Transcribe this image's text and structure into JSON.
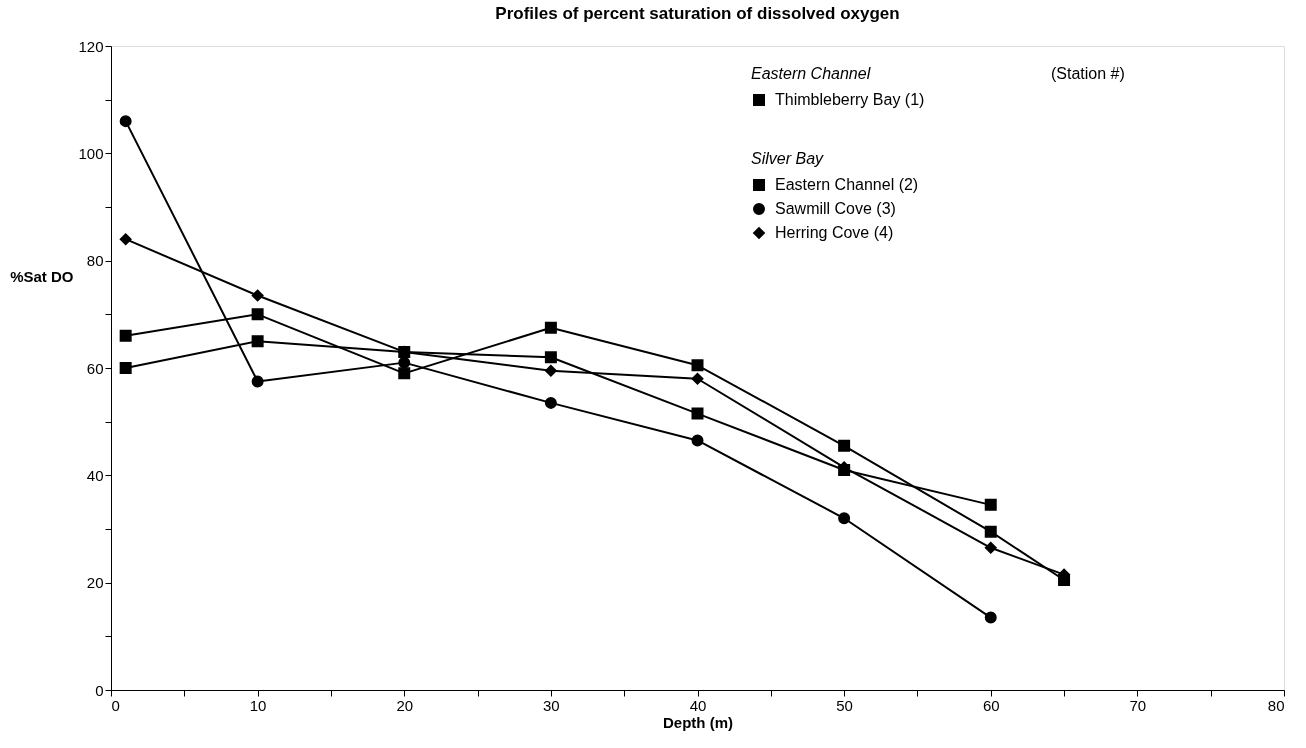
{
  "chart_data": {
    "type": "line",
    "title": "Profiles of percent saturation of dissolved oxygen",
    "xlabel": "Depth  (m)",
    "ylabel": "%Sat  DO",
    "annotations": [
      "Eastern Channel",
      "(Station #)",
      "Silver Bay"
    ],
    "xlim": [
      0,
      80
    ],
    "ylim": [
      0,
      120
    ],
    "xticks": [
      0,
      {
        "value": 5,
        "label": null
      },
      10,
      {
        "value": 15,
        "label": null
      },
      20,
      {
        "value": 25,
        "label": null
      },
      30,
      {
        "value": 35,
        "label": null
      },
      40,
      {
        "value": 45,
        "label": null
      },
      50,
      {
        "value": 55,
        "label": null
      },
      60,
      {
        "value": 65,
        "label": null
      },
      70,
      {
        "value": 75,
        "label": null
      },
      80
    ],
    "yticks": [
      0,
      {
        "value": 10,
        "label": null
      },
      20,
      {
        "value": 30,
        "label": null
      },
      40,
      {
        "value": 50,
        "label": null
      },
      60,
      {
        "value": 70,
        "label": null
      },
      80,
      {
        "value": 90,
        "label": null
      },
      100,
      {
        "value": 110,
        "label": null
      },
      120
    ],
    "grid": false,
    "legend": "top right",
    "line_style": "solid",
    "series": [
      {
        "name": "Thimbleberry Bay (1)",
        "color": "#000000",
        "marker": "square",
        "x": [
          1,
          10,
          20,
          30,
          40,
          50,
          60
        ],
        "values": [
          60,
          65,
          63,
          62,
          51.5,
          41,
          34.5
        ]
      },
      {
        "name": "Eastern Channel (2)",
        "color": "#000000",
        "marker": "square",
        "x": [
          1,
          10,
          20,
          30,
          40,
          50,
          60,
          65
        ],
        "values": [
          66,
          70,
          59,
          67.5,
          60.5,
          45.5,
          29.5,
          20.5
        ]
      },
      {
        "name": "Sawmill Cove (3)",
        "color": "#000000",
        "marker": "circle",
        "x": [
          1,
          10,
          20,
          30,
          40,
          50,
          60
        ],
        "values": [
          106,
          57.5,
          61,
          53.5,
          46.5,
          32,
          13.5
        ]
      },
      {
        "name": "Herring Cove (4)",
        "color": "#000000",
        "marker": "diamond",
        "x": [
          1,
          10,
          20,
          30,
          40,
          50,
          60,
          65
        ],
        "values": [
          84,
          73.5,
          63,
          59.5,
          58,
          41.5,
          26.5,
          21.5
        ]
      }
    ]
  }
}
